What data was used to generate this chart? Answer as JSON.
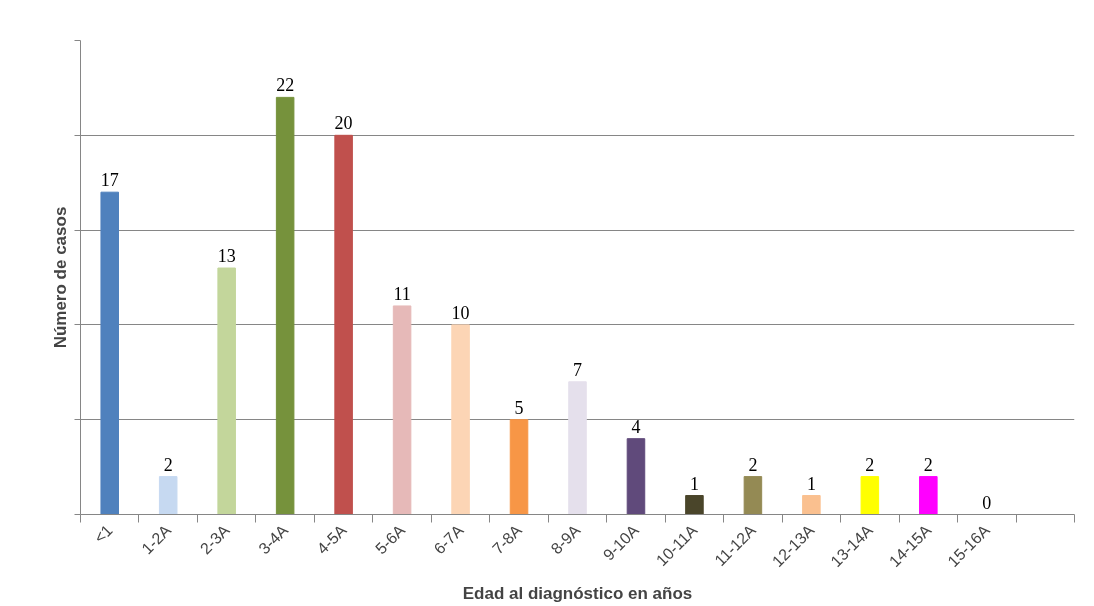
{
  "chart_data": {
    "type": "bar",
    "xlabel": "Edad al diagnóstico en años",
    "ylabel": "Número de casos",
    "categories": [
      "<1",
      "1-2A",
      "2-3A",
      "3-4A",
      "4-5A",
      "5-6A",
      "6-7A",
      "7-8A",
      "8-9A",
      "9-10A",
      "10-11A",
      "11-12A",
      "12-13A",
      "13-14A",
      "14-15A",
      "15-16A",
      null
    ],
    "values": [
      17,
      2,
      13,
      22,
      20,
      11,
      10,
      5,
      7,
      4,
      1,
      2,
      1,
      2,
      2,
      0,
      null
    ],
    "colors": [
      "#4f81bd",
      "#c6d9f1",
      "#c3d69b",
      "#76923c",
      "#c0504d",
      "#e6b9b8",
      "#fcd5b5",
      "#f79646",
      "#e5e0ec",
      "#604a7b",
      "#4a452a",
      "#948a54",
      "#fac08f",
      "#ffff00",
      "#ff00ff",
      "#4f81bd",
      "#4f81bd"
    ],
    "ylim": [
      0,
      25
    ],
    "yticks": [
      {
        "value": 0,
        "label": null
      },
      {
        "value": 5,
        "label": null
      },
      {
        "value": 10,
        "label": null
      },
      {
        "value": 15,
        "label": null
      },
      {
        "value": 20,
        "label": null
      },
      {
        "value": 25,
        "label": null
      }
    ],
    "grid": "y",
    "tick_labels": "x",
    "data_labels": true
  }
}
